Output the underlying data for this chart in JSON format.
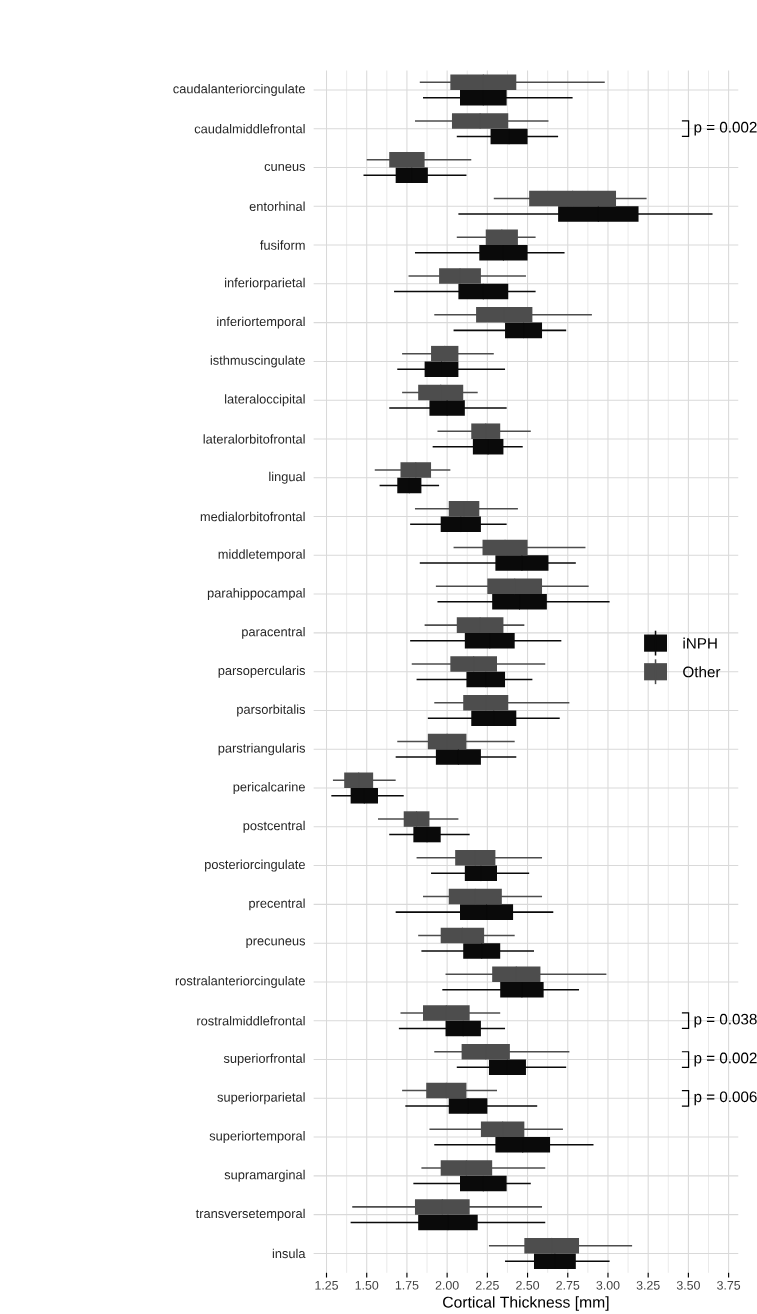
{
  "chart_data": {
    "type": "box",
    "orientation": "horizontal",
    "xlabel": "Cortical Thickness [mm]",
    "categories": [
      "caudalanteriorcingulate",
      "caudalmiddlefrontal",
      "cuneus",
      "entorhinal",
      "fusiform",
      "inferiorparietal",
      "inferiortemporal",
      "isthmuscingulate",
      "lateraloccipital",
      "lateralorbitofrontal",
      "lingual",
      "medialorbitofrontal",
      "middletemporal",
      "parahippocampal",
      "paracentral",
      "parsopercularis",
      "parsorbitalis",
      "parstriangularis",
      "pericalcarine",
      "postcentral",
      "posteriorcingulate",
      "precentral",
      "precuneus",
      "rostralanteriorcingulate",
      "rostralmiddlefrontal",
      "superiorfrontal",
      "superiorparietal",
      "superiortemporal",
      "supramarginal",
      "transversetemporal",
      "insula"
    ],
    "series": [
      {
        "name": "iNPH",
        "color": "#0a0a0a",
        "boxes": [
          {
            "low": 1.85,
            "q1": 2.08,
            "median": 2.225,
            "q3": 2.37,
            "high": 2.78
          },
          {
            "low": 2.06,
            "q1": 2.27,
            "median": 2.385,
            "q3": 2.5,
            "high": 2.69
          },
          {
            "low": 1.48,
            "q1": 1.68,
            "median": 1.78,
            "q3": 1.88,
            "high": 2.12
          },
          {
            "low": 2.07,
            "q1": 2.69,
            "median": 2.94,
            "q3": 3.19,
            "high": 3.65
          },
          {
            "low": 1.8,
            "q1": 2.2,
            "median": 2.35,
            "q3": 2.5,
            "high": 2.73
          },
          {
            "low": 1.67,
            "q1": 2.07,
            "median": 2.225,
            "q3": 2.38,
            "high": 2.55
          },
          {
            "low": 2.04,
            "q1": 2.36,
            "median": 2.475,
            "q3": 2.59,
            "high": 2.74
          },
          {
            "low": 1.69,
            "q1": 1.86,
            "median": 1.965,
            "q3": 2.07,
            "high": 2.36
          },
          {
            "low": 1.64,
            "q1": 1.89,
            "median": 2.0,
            "q3": 2.11,
            "high": 2.37
          },
          {
            "low": 1.91,
            "q1": 2.16,
            "median": 2.255,
            "q3": 2.35,
            "high": 2.47
          },
          {
            "low": 1.58,
            "q1": 1.69,
            "median": 1.765,
            "q3": 1.84,
            "high": 1.95
          },
          {
            "low": 1.77,
            "q1": 1.96,
            "median": 2.085,
            "q3": 2.21,
            "high": 2.37
          },
          {
            "low": 1.83,
            "q1": 2.3,
            "median": 2.465,
            "q3": 2.63,
            "high": 2.8
          },
          {
            "low": 1.94,
            "q1": 2.28,
            "median": 2.45,
            "q3": 2.62,
            "high": 3.01
          },
          {
            "low": 1.77,
            "q1": 2.11,
            "median": 2.265,
            "q3": 2.42,
            "high": 2.71
          },
          {
            "low": 1.81,
            "q1": 2.12,
            "median": 2.24,
            "q3": 2.36,
            "high": 2.53
          },
          {
            "low": 1.88,
            "q1": 2.15,
            "median": 2.29,
            "q3": 2.43,
            "high": 2.7
          },
          {
            "low": 1.68,
            "q1": 1.93,
            "median": 2.07,
            "q3": 2.21,
            "high": 2.43
          },
          {
            "low": 1.28,
            "q1": 1.4,
            "median": 1.485,
            "q3": 1.57,
            "high": 1.73
          },
          {
            "low": 1.64,
            "q1": 1.79,
            "median": 1.875,
            "q3": 1.96,
            "high": 2.14
          },
          {
            "low": 1.9,
            "q1": 2.11,
            "median": 2.21,
            "q3": 2.31,
            "high": 2.51
          },
          {
            "low": 1.68,
            "q1": 2.08,
            "median": 2.245,
            "q3": 2.41,
            "high": 2.66
          },
          {
            "low": 1.84,
            "q1": 2.1,
            "median": 2.215,
            "q3": 2.33,
            "high": 2.54
          },
          {
            "low": 1.97,
            "q1": 2.33,
            "median": 2.465,
            "q3": 2.6,
            "high": 2.82
          },
          {
            "low": 1.7,
            "q1": 1.99,
            "median": 2.1,
            "q3": 2.21,
            "high": 2.36
          },
          {
            "low": 2.06,
            "q1": 2.26,
            "median": 2.375,
            "q3": 2.49,
            "high": 2.74
          },
          {
            "low": 1.74,
            "q1": 2.01,
            "median": 2.13,
            "q3": 2.25,
            "high": 2.56
          },
          {
            "low": 1.92,
            "q1": 2.3,
            "median": 2.47,
            "q3": 2.64,
            "high": 2.91
          },
          {
            "low": 1.79,
            "q1": 2.08,
            "median": 2.225,
            "q3": 2.37,
            "high": 2.52
          },
          {
            "low": 1.4,
            "q1": 1.82,
            "median": 2.005,
            "q3": 2.19,
            "high": 2.61
          },
          {
            "low": 2.36,
            "q1": 2.54,
            "median": 2.67,
            "q3": 2.8,
            "high": 3.01
          }
        ]
      },
      {
        "name": "Other",
        "color": "#4d4d4d",
        "boxes": [
          {
            "low": 1.83,
            "q1": 2.02,
            "median": 2.225,
            "q3": 2.43,
            "high": 2.98
          },
          {
            "low": 1.8,
            "q1": 2.03,
            "median": 2.205,
            "q3": 2.38,
            "high": 2.63
          },
          {
            "low": 1.5,
            "q1": 1.64,
            "median": 1.75,
            "q3": 1.86,
            "high": 2.15
          },
          {
            "low": 2.29,
            "q1": 2.51,
            "median": 2.78,
            "q3": 3.05,
            "high": 3.24
          },
          {
            "low": 2.06,
            "q1": 2.24,
            "median": 2.34,
            "q3": 2.44,
            "high": 2.55
          },
          {
            "low": 1.76,
            "q1": 1.95,
            "median": 2.08,
            "q3": 2.21,
            "high": 2.49
          },
          {
            "low": 1.92,
            "q1": 2.18,
            "median": 2.355,
            "q3": 2.53,
            "high": 2.9
          },
          {
            "low": 1.72,
            "q1": 1.9,
            "median": 1.985,
            "q3": 2.07,
            "high": 2.29
          },
          {
            "low": 1.72,
            "q1": 1.82,
            "median": 1.96,
            "q3": 2.1,
            "high": 2.19
          },
          {
            "low": 1.94,
            "q1": 2.15,
            "median": 2.24,
            "q3": 2.33,
            "high": 2.52
          },
          {
            "low": 1.55,
            "q1": 1.71,
            "median": 1.805,
            "q3": 1.9,
            "high": 2.02
          },
          {
            "low": 1.8,
            "q1": 2.01,
            "median": 2.105,
            "q3": 2.2,
            "high": 2.44
          },
          {
            "low": 2.04,
            "q1": 2.22,
            "median": 2.36,
            "q3": 2.5,
            "high": 2.86
          },
          {
            "low": 1.93,
            "q1": 2.25,
            "median": 2.42,
            "q3": 2.59,
            "high": 2.88
          },
          {
            "low": 1.86,
            "q1": 2.06,
            "median": 2.205,
            "q3": 2.35,
            "high": 2.48
          },
          {
            "low": 1.78,
            "q1": 2.02,
            "median": 2.165,
            "q3": 2.31,
            "high": 2.61
          },
          {
            "low": 1.92,
            "q1": 2.1,
            "median": 2.24,
            "q3": 2.38,
            "high": 2.76
          },
          {
            "low": 1.69,
            "q1": 1.88,
            "median": 2.0,
            "q3": 2.12,
            "high": 2.42
          },
          {
            "low": 1.29,
            "q1": 1.36,
            "median": 1.45,
            "q3": 1.54,
            "high": 1.68
          },
          {
            "low": 1.57,
            "q1": 1.73,
            "median": 1.81,
            "q3": 1.89,
            "high": 2.07
          },
          {
            "low": 1.81,
            "q1": 2.05,
            "median": 2.175,
            "q3": 2.3,
            "high": 2.59
          },
          {
            "low": 1.85,
            "q1": 2.01,
            "median": 2.175,
            "q3": 2.34,
            "high": 2.59
          },
          {
            "low": 1.82,
            "q1": 1.96,
            "median": 2.095,
            "q3": 2.23,
            "high": 2.42
          },
          {
            "low": 1.99,
            "q1": 2.28,
            "median": 2.43,
            "q3": 2.58,
            "high": 2.99
          },
          {
            "low": 1.71,
            "q1": 1.85,
            "median": 1.995,
            "q3": 2.14,
            "high": 2.33
          },
          {
            "low": 1.92,
            "q1": 2.09,
            "median": 2.24,
            "q3": 2.39,
            "high": 2.76
          },
          {
            "low": 1.72,
            "q1": 1.87,
            "median": 1.995,
            "q3": 2.12,
            "high": 2.31
          },
          {
            "low": 1.89,
            "q1": 2.21,
            "median": 2.345,
            "q3": 2.48,
            "high": 2.72
          },
          {
            "low": 1.84,
            "q1": 1.96,
            "median": 2.12,
            "q3": 2.28,
            "high": 2.61
          },
          {
            "low": 1.41,
            "q1": 1.8,
            "median": 1.97,
            "q3": 2.14,
            "high": 2.59
          },
          {
            "low": 2.26,
            "q1": 2.48,
            "median": 2.65,
            "q3": 2.82,
            "high": 3.15
          }
        ]
      }
    ],
    "xlim": [
      1.17,
      3.81
    ],
    "xticks": [
      1.25,
      {
        "value": 1.5,
        "label": "1.50"
      },
      1.75,
      {
        "value": 2,
        "label": "2.00"
      },
      2.25,
      {
        "value": 2.5,
        "label": "2.50"
      },
      2.75,
      {
        "value": 3,
        "label": "3.00"
      },
      3.25,
      {
        "value": 3.5,
        "label": "3.50"
      },
      3.75
    ],
    "grid": true,
    "legend": "right",
    "annotations": [
      "p = 0.002",
      "p = 0.038",
      "p = 0.002",
      "p = 0.006"
    ]
  }
}
